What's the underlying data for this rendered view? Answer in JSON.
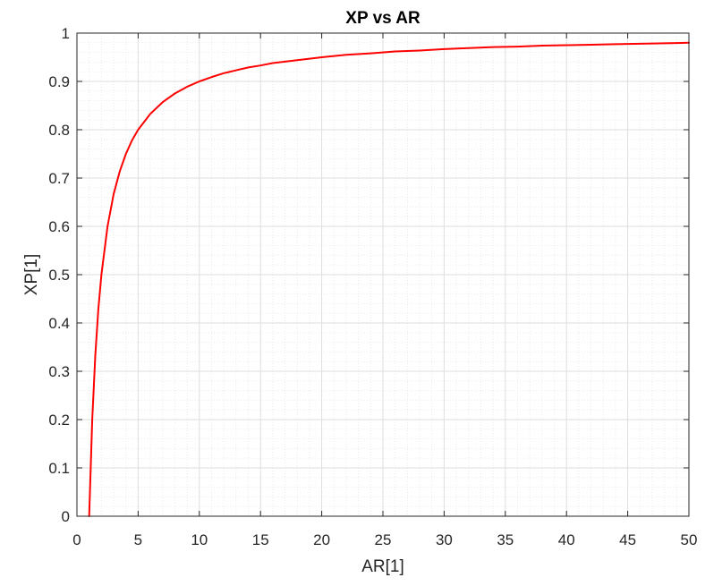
{
  "chart_data": {
    "type": "line",
    "title": "XP vs AR",
    "xlabel": "AR[1]",
    "ylabel": "XP[1]",
    "xlim": [
      0,
      50
    ],
    "ylim": [
      0,
      1
    ],
    "xticks": [
      0,
      5,
      10,
      15,
      20,
      25,
      30,
      35,
      40,
      45,
      50
    ],
    "yticks": [
      0,
      0.1,
      0.2,
      0.3,
      0.4,
      0.5,
      0.6,
      0.7,
      0.8,
      0.9,
      1
    ],
    "xtick_labels": [
      "0",
      "5",
      "10",
      "15",
      "20",
      "25",
      "30",
      "35",
      "40",
      "45",
      "50"
    ],
    "ytick_labels": [
      "0",
      "0.1",
      "0.2",
      "0.3",
      "0.4",
      "0.5",
      "0.6",
      "0.7",
      "0.8",
      "0.9",
      "1"
    ],
    "grid": true,
    "minor_grid": true,
    "series": [
      {
        "color": "#ff0000",
        "x": [
          1,
          1.25,
          1.5,
          1.75,
          2,
          2.5,
          3,
          3.5,
          4,
          4.5,
          5,
          6,
          7,
          8,
          9,
          10,
          11,
          12,
          13,
          14,
          15,
          16,
          17,
          18,
          19,
          20,
          22,
          24,
          26,
          28,
          30,
          32,
          34,
          36,
          38,
          40,
          42,
          44,
          46,
          48,
          50
        ],
        "y": [
          0,
          0.2,
          0.333,
          0.429,
          0.5,
          0.6,
          0.667,
          0.714,
          0.75,
          0.778,
          0.8,
          0.833,
          0.857,
          0.875,
          0.889,
          0.9,
          0.909,
          0.917,
          0.923,
          0.929,
          0.933,
          0.938,
          0.941,
          0.944,
          0.947,
          0.95,
          0.955,
          0.958,
          0.962,
          0.964,
          0.967,
          0.969,
          0.971,
          0.972,
          0.974,
          0.975,
          0.976,
          0.977,
          0.978,
          0.979,
          0.98
        ]
      }
    ]
  },
  "colors": {
    "axis": "#262626",
    "grid_major": "#dedede",
    "grid_minor": "#ebebeb",
    "background": "#ffffff"
  }
}
